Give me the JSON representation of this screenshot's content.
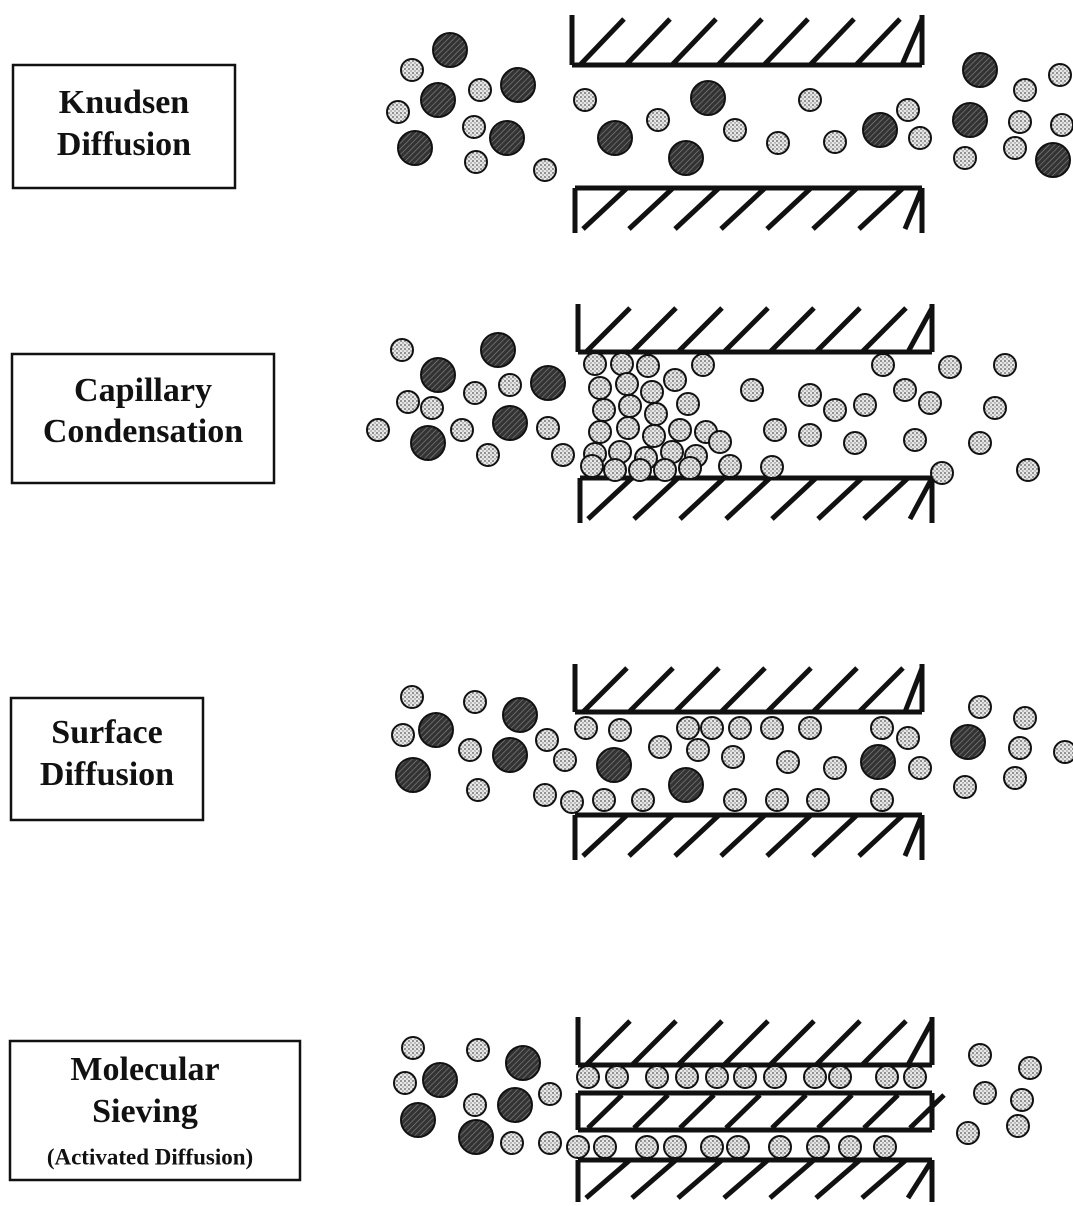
{
  "panels": [
    {
      "lines": [
        "Knudsen",
        "Diffusion"
      ]
    },
    {
      "lines": [
        "Capillary",
        "Condensation"
      ]
    },
    {
      "lines": [
        "Surface",
        "Diffusion"
      ]
    },
    {
      "lines": [
        "Molecular",
        "Sieving",
        "(Activated Diffusion)"
      ]
    }
  ]
}
